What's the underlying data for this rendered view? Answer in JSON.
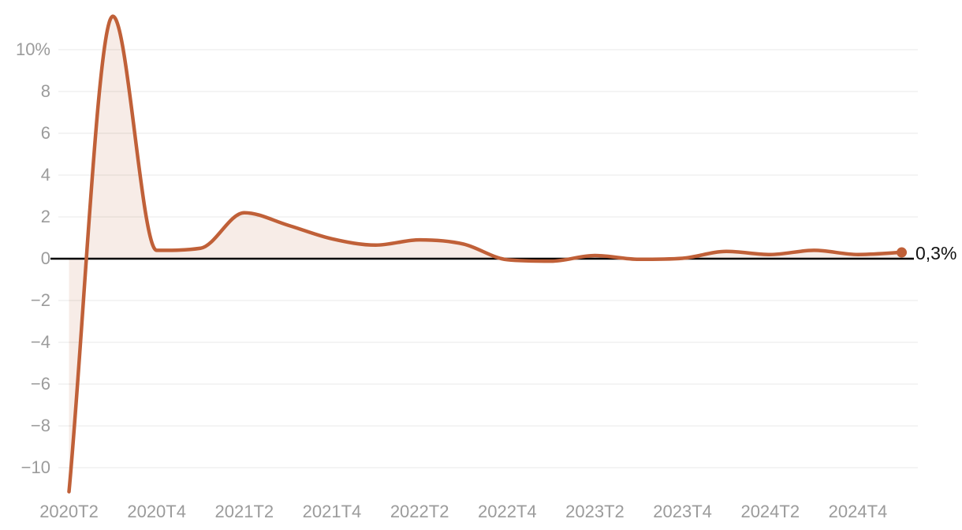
{
  "chart_data": {
    "type": "area",
    "x": [
      "2020T2",
      "2020T3",
      "2020T4",
      "2021T1",
      "2021T2",
      "2021T3",
      "2021T4",
      "2022T1",
      "2022T2",
      "2022T3",
      "2022T4",
      "2023T1",
      "2023T2",
      "2023T3",
      "2023T4",
      "2024T1",
      "2024T2",
      "2024T3",
      "2024T4",
      "2025T1"
    ],
    "values": [
      -11.15,
      11.6,
      0.4,
      0.5,
      2.2,
      1.6,
      0.95,
      0.65,
      0.9,
      0.7,
      -0.05,
      -0.12,
      0.15,
      -0.03,
      0.02,
      0.35,
      0.2,
      0.4,
      0.2,
      0.3
    ],
    "unit": "%",
    "x_tick_labels": [
      "2020T2",
      "2020T4",
      "2021T2",
      "2021T4",
      "2022T2",
      "2022T4",
      "2023T2",
      "2023T4",
      "2024T2",
      "2024T4"
    ],
    "y_ticks": [
      10,
      8,
      6,
      4,
      2,
      0,
      -2,
      -4,
      -6,
      -8,
      -10
    ],
    "y_tick_labels": [
      "10%",
      "8",
      "6",
      "4",
      "2",
      "0",
      "−2",
      "−4",
      "−6",
      "−8",
      "−10"
    ],
    "ylim": [
      -11.5,
      12.4
    ],
    "baseline": 0,
    "grid": true,
    "legend": "none",
    "end_label": "0,3%",
    "last_value": "0,3%",
    "colors": {
      "line": "#c06038",
      "fill": "rgba(192,96,56,0.12)",
      "marker": "#c06038",
      "grid": "#e8e8e8",
      "zero_line": "#000000",
      "axis_text": "#9b9b9b",
      "end_label_text": "#111111"
    }
  }
}
